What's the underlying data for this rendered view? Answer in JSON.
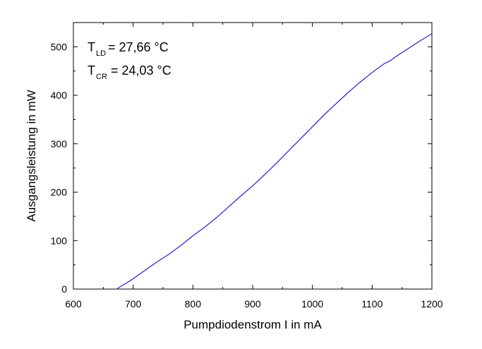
{
  "chart_data": {
    "type": "line",
    "title": "",
    "xlabel": "Pumpdiodenstrom I in mA",
    "ylabel": "Ausgangsleistung in mW",
    "xlim": [
      600,
      1200
    ],
    "ylim": [
      0,
      550
    ],
    "xticks": [
      600,
      700,
      800,
      900,
      1000,
      1100,
      1200
    ],
    "yticks": [
      0,
      100,
      200,
      300,
      400,
      500
    ],
    "grid": false,
    "legend": "none",
    "line_color": "#2222cc",
    "series": [
      {
        "x": [
          672,
          680,
          695,
          710,
          725,
          740,
          760,
          780,
          800,
          820,
          840,
          860,
          880,
          900,
          920,
          940,
          960,
          980,
          1000,
          1020,
          1040,
          1060,
          1080,
          1100,
          1120,
          1130,
          1140,
          1160,
          1180,
          1200
        ],
        "y": [
          0,
          6,
          17,
          30,
          43,
          56,
          72,
          90,
          110,
          128,
          148,
          170,
          192,
          213,
          236,
          260,
          285,
          310,
          335,
          360,
          383,
          406,
          427,
          447,
          465,
          471,
          480,
          496,
          512,
          527
        ]
      }
    ],
    "annotations": [
      {
        "base": "T",
        "sub": "LD",
        "text": " = 27,66 °C"
      },
      {
        "base": "T",
        "sub": "CR",
        "text": " = 24,03 °C"
      }
    ]
  }
}
